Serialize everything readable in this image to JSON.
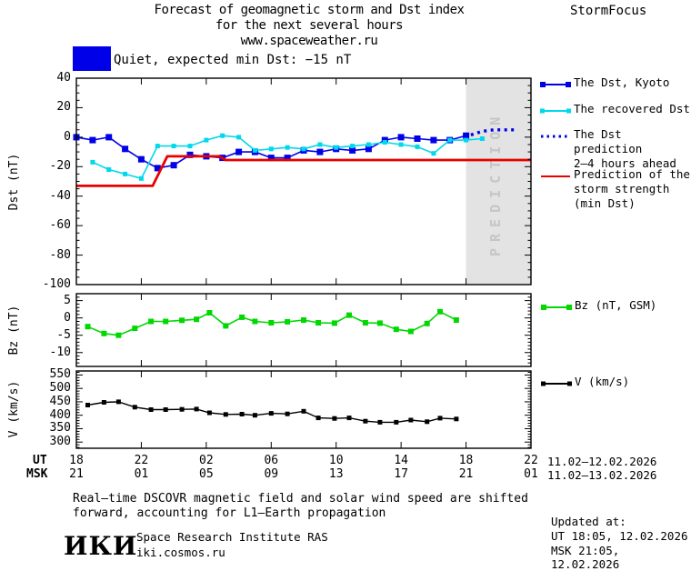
{
  "header": {
    "title_line1": "Forecast of geomagnetic storm and Dst index",
    "title_line2": "for the next several hours",
    "title_line3": "www.spaceweather.ru",
    "brand": "StormFocus"
  },
  "status": {
    "label": "Quiet, expected min Dst: −15 nT",
    "level_color": "#0000e8"
  },
  "colors": {
    "kyoto_blue": "#0000e8",
    "recovered_cyan": "#00d8ec",
    "prediction_blue": "#0000e8",
    "storm_red": "#e80000",
    "bz_green": "#00d800",
    "v_black": "#000000",
    "band_gray": "#e3e3e3",
    "band_text_gray": "#c6c6c6"
  },
  "prediction_band": {
    "label": "PREDICTION",
    "from_hour": 24,
    "to_hour": 28
  },
  "xaxis": {
    "key_ut": "UT",
    "key_msk": "MSK",
    "tick_hours": [
      0,
      4,
      8,
      12,
      16,
      20,
      24,
      28
    ],
    "ut_ticks": [
      "18",
      "22",
      "02",
      "06",
      "10",
      "14",
      "18",
      "22"
    ],
    "msk_ticks": [
      "21",
      "01",
      "05",
      "09",
      "13",
      "17",
      "21",
      "01"
    ],
    "ut_range": "11.02–12.02.2026",
    "msk_range": "11.02–13.02.2026"
  },
  "legend": {
    "dst": [
      {
        "l1": "The Dst, Kyoto"
      },
      {
        "l1": "The recovered Dst"
      },
      {
        "l1": "The Dst prediction",
        "l2": "2–4 hours ahead"
      },
      {
        "l1": "Prediction of the",
        "l2": "storm strength",
        "l3": "(min Dst)"
      }
    ],
    "bz": {
      "l1": "Bz (nT, GSM)"
    },
    "v": {
      "l1": "V (km/s)"
    }
  },
  "footer": {
    "note1": "Real–time DSCOVR magnetic field and solar wind speed are shifted",
    "note2": "forward, accounting for L1–Earth propagation",
    "logo": "ИКИ",
    "org": "Space Research Institute RAS",
    "site": "iki.cosmos.ru",
    "updated_label": "Updated at:",
    "updated_ut": "UT  18:05, 12.02.2026",
    "updated_msk": "MSK 21:05, 12.02.2026"
  },
  "chart_data": [
    {
      "type": "line",
      "panel": "dst",
      "ylabel": "Dst (nT)",
      "ylim": [
        -100,
        40
      ],
      "yticks": [
        40,
        20,
        0,
        -20,
        -40,
        -60,
        -80,
        -100
      ],
      "minor_step": 5,
      "x_unit": "hours since 18:00 UT 11.02.2026",
      "xlim": [
        0,
        28
      ],
      "series": [
        {
          "name": "The Dst, Kyoto",
          "color": "#0000e8",
          "width": 1.6,
          "marker": 7,
          "x": [
            0,
            1,
            2,
            3,
            4,
            5,
            6,
            7,
            8,
            9,
            10,
            11,
            12,
            13,
            14,
            15,
            16,
            17,
            18,
            19,
            20,
            21,
            22,
            23,
            24
          ],
          "values": [
            0,
            -2,
            0,
            -8,
            -15,
            -21,
            -19,
            -12,
            -13,
            -14,
            -10,
            -10,
            -14,
            -14,
            -9,
            -10,
            -8,
            -9,
            -8,
            -2,
            0,
            -1,
            -2,
            -2,
            1
          ]
        },
        {
          "name": "The recovered Dst",
          "color": "#00d8ec",
          "width": 1.6,
          "marker": 5,
          "x": [
            1,
            2,
            3,
            4,
            5,
            6,
            7,
            8,
            9,
            10,
            11,
            12,
            13,
            14,
            15,
            16,
            17,
            18,
            19,
            20,
            21,
            22,
            23,
            24,
            25
          ],
          "values": [
            -17,
            -22,
            -25,
            -28,
            -6,
            -6,
            -6,
            -2,
            1,
            0,
            -9,
            -8,
            -7,
            -8,
            -5,
            -7,
            -6,
            -5,
            -3.5,
            -5,
            -6.5,
            -11,
            -2,
            -2,
            -1
          ]
        },
        {
          "name": "The Dst prediction 2–4 hours ahead",
          "color": "#0000e8",
          "width": 3.4,
          "marker": 0,
          "dash": "3 4.5",
          "x": [
            24.3,
            25,
            25.7,
            27.2
          ],
          "values": [
            1.5,
            4,
            5,
            5
          ]
        },
        {
          "name": "Prediction of the storm strength (min Dst)",
          "color": "#e80000",
          "width": 2.8,
          "marker": 0,
          "x": [
            0,
            4.7,
            5.6,
            8.8,
            9.2,
            28
          ],
          "values": [
            -33,
            -33,
            -13,
            -13,
            -15.5,
            -15.5
          ]
        }
      ]
    },
    {
      "type": "line",
      "panel": "bz",
      "ylabel": "Bz (nT)",
      "ylim": [
        -14,
        7
      ],
      "yticks": [
        5,
        0,
        -5,
        -10
      ],
      "minor_step": 1,
      "xlim": [
        0,
        28
      ],
      "series": [
        {
          "name": "Bz (nT, GSM)",
          "color": "#00d800",
          "width": 1.6,
          "marker": 6,
          "x": [
            0.7,
            1.7,
            2.6,
            3.6,
            4.6,
            5.5,
            6.5,
            7.4,
            8.2,
            9.2,
            10.2,
            11,
            12,
            13,
            14,
            14.9,
            15.9,
            16.8,
            17.8,
            18.7,
            19.7,
            20.6,
            21.6,
            22.4,
            23.4
          ],
          "values": [
            -2.5,
            -4.5,
            -5,
            -3,
            -1,
            -1,
            -0.7,
            -0.4,
            1.5,
            -2.3,
            0.2,
            -1,
            -1.4,
            -1.1,
            -0.6,
            -1.4,
            -1.5,
            0.8,
            -1.4,
            -1.5,
            -3.3,
            -3.9,
            -1.6,
            1.8,
            -0.6
          ]
        }
      ]
    },
    {
      "type": "line",
      "panel": "v",
      "ylabel": "V (km/s)",
      "ylim": [
        277,
        565
      ],
      "yticks": [
        550,
        500,
        450,
        400,
        350,
        300
      ],
      "minor_step": 10,
      "xlim": [
        0,
        28
      ],
      "series": [
        {
          "name": "V (km/s)",
          "color": "#000000",
          "width": 1.4,
          "marker": 5,
          "x": [
            0.7,
            1.7,
            2.6,
            3.6,
            4.6,
            5.5,
            6.5,
            7.4,
            8.2,
            9.2,
            10.2,
            11,
            12,
            13,
            14,
            14.9,
            15.9,
            16.8,
            17.8,
            18.7,
            19.7,
            20.6,
            21.6,
            22.4,
            23.4
          ],
          "values": [
            438,
            448,
            450,
            430,
            421,
            421,
            422,
            423,
            409,
            403,
            404,
            400,
            407,
            405,
            415,
            390,
            388,
            390,
            378,
            374,
            374,
            382,
            376,
            389,
            386
          ]
        }
      ]
    }
  ]
}
